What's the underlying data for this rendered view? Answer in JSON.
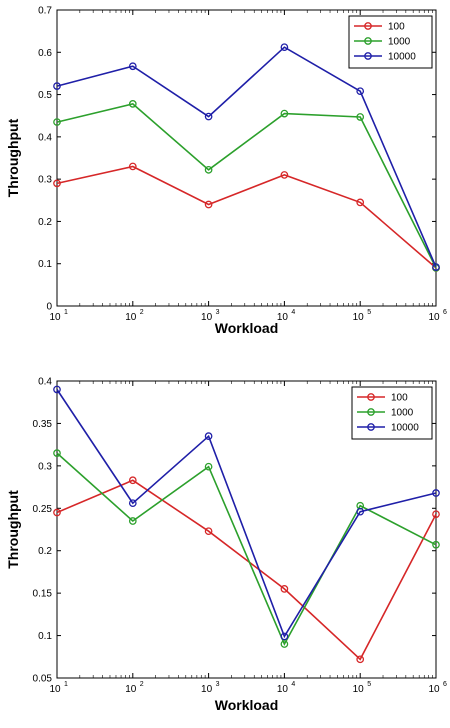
{
  "chart_data": [
    {
      "type": "line",
      "xlabel": "Workload",
      "ylabel": "Throughput",
      "x_scale": "log",
      "x": [
        10,
        100,
        1000,
        10000,
        100000,
        1000000
      ],
      "x_ticks": [
        {
          "base": "10",
          "exp": "1"
        },
        {
          "base": "10",
          "exp": "2"
        },
        {
          "base": "10",
          "exp": "3"
        },
        {
          "base": "10",
          "exp": "4"
        },
        {
          "base": "10",
          "exp": "5"
        },
        {
          "base": "10",
          "exp": "6"
        }
      ],
      "ylim": [
        0,
        0.7
      ],
      "y_ticks": [
        "0",
        "0.1",
        "0.2",
        "0.3",
        "0.4",
        "0.5",
        "0.6",
        "0.7"
      ],
      "legend_position": "top-right",
      "grid": false,
      "series": [
        {
          "name": "100",
          "color": "#d62728",
          "values": [
            0.29,
            0.33,
            0.24,
            0.31,
            0.245,
            0.09
          ]
        },
        {
          "name": "1000",
          "color": "#2ca02c",
          "values": [
            0.435,
            0.478,
            0.322,
            0.455,
            0.447,
            0.09
          ]
        },
        {
          "name": "10000",
          "color": "#1f1fa8",
          "values": [
            0.52,
            0.567,
            0.448,
            0.612,
            0.508,
            0.092
          ]
        }
      ]
    },
    {
      "type": "line",
      "xlabel": "Workload",
      "ylabel": "Throughput",
      "x_scale": "log",
      "x": [
        10,
        100,
        1000,
        10000,
        100000,
        1000000
      ],
      "x_ticks": [
        {
          "base": "10",
          "exp": "1"
        },
        {
          "base": "10",
          "exp": "2"
        },
        {
          "base": "10",
          "exp": "3"
        },
        {
          "base": "10",
          "exp": "4"
        },
        {
          "base": "10",
          "exp": "5"
        },
        {
          "base": "10",
          "exp": "6"
        }
      ],
      "ylim": [
        0.05,
        0.4
      ],
      "y_ticks": [
        "0.05",
        "0.1",
        "0.15",
        "0.2",
        "0.25",
        "0.3",
        "0.35",
        "0.4"
      ],
      "legend_position": "top-right",
      "grid": false,
      "series": [
        {
          "name": "100",
          "color": "#d62728",
          "values": [
            0.245,
            0.283,
            0.223,
            0.155,
            0.072,
            0.243
          ]
        },
        {
          "name": "1000",
          "color": "#2ca02c",
          "values": [
            0.315,
            0.235,
            0.299,
            0.09,
            0.253,
            0.207
          ]
        },
        {
          "name": "10000",
          "color": "#1f1fa8",
          "values": [
            0.39,
            0.256,
            0.335,
            0.099,
            0.246,
            0.268
          ]
        }
      ]
    }
  ]
}
